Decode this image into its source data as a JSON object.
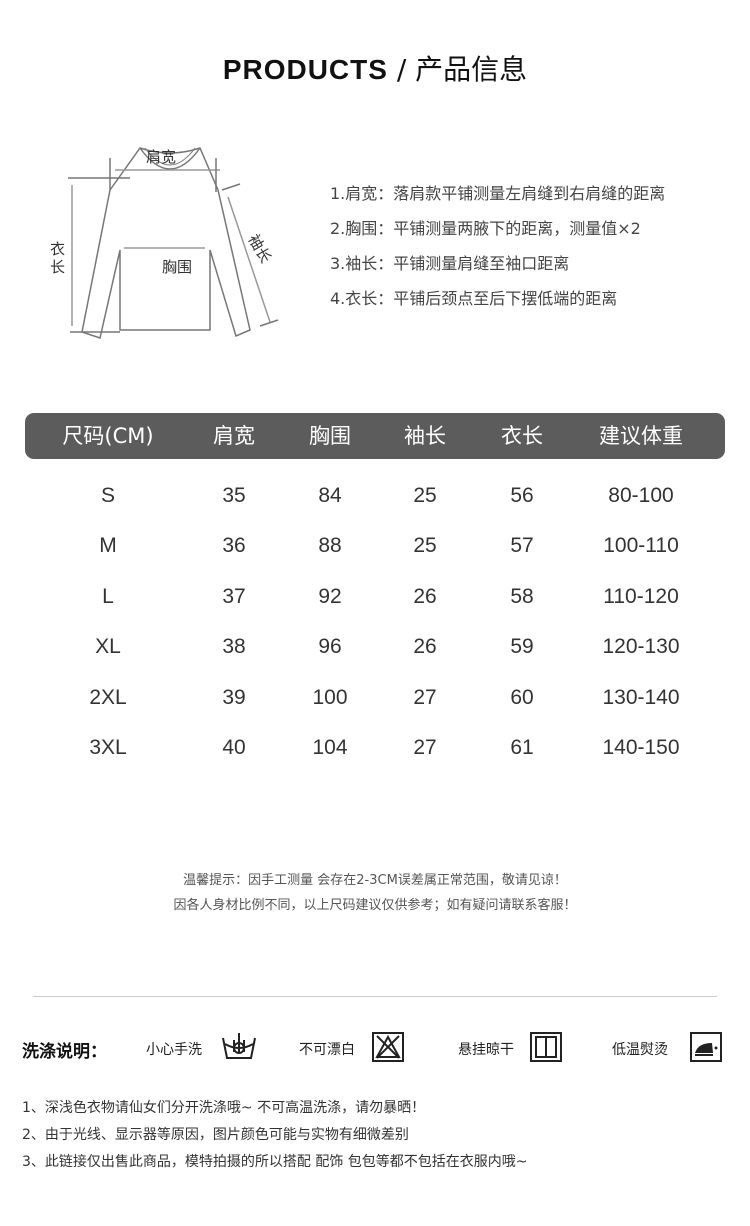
{
  "header": {
    "title_en": "PRODUCTS",
    "separator": " / ",
    "title_zh": "产品信息"
  },
  "diagram": {
    "shoulder": "肩宽",
    "chest": "胸围",
    "sleeve": "袖长",
    "length": "衣长"
  },
  "notes": [
    "1.肩宽：落肩款平铺测量左肩缝到右肩缝的距离",
    "2.胸围：平铺测量两腋下的距离，测量值×2",
    "3.袖长：平铺测量肩缝至袖口距离",
    "4.衣长：平铺后颈点至后下摆低端的距离"
  ],
  "table": {
    "headers": [
      "尺码(CM)",
      "肩宽",
      "胸围",
      "袖长",
      "衣长",
      "建议体重"
    ],
    "header_color": "#5c5c5c",
    "rows": [
      [
        "S",
        "35",
        "84",
        "25",
        "56",
        "80-100"
      ],
      [
        "M",
        "36",
        "88",
        "25",
        "57",
        "100-110"
      ],
      [
        "L",
        "37",
        "92",
        "26",
        "58",
        "110-120"
      ],
      [
        "XL",
        "38",
        "96",
        "26",
        "59",
        "120-130"
      ],
      [
        "2XL",
        "39",
        "100",
        "27",
        "60",
        "130-140"
      ],
      [
        "3XL",
        "40",
        "104",
        "27",
        "61",
        "140-150"
      ]
    ]
  },
  "tips": [
    "温馨提示：因手工测量 会存在2-3CM误差属正常范围，敬请见谅！",
    "因各人身材比例不同，以上尺码建议仅供参考；如有疑问请联系客服！"
  ],
  "washing": {
    "label": "洗涤说明：",
    "items": [
      {
        "label": "小心手洗",
        "icon": "hand-wash-icon"
      },
      {
        "label": "不可漂白",
        "icon": "no-bleach-icon"
      },
      {
        "label": "悬挂晾干",
        "icon": "hang-dry-icon"
      },
      {
        "label": "低温熨烫",
        "icon": "low-iron-icon"
      }
    ]
  },
  "bottom_notes": [
    "1、深浅色衣物请仙女们分开洗涤哦~ 不可高温洗涤，请勿暴晒！",
    "2、由于光线、显示器等原因，图片颜色可能与实物有细微差别",
    "3、此链接仅出售此商品，模特拍摄的所以搭配 配饰 包包等都不包括在衣服内哦~"
  ]
}
